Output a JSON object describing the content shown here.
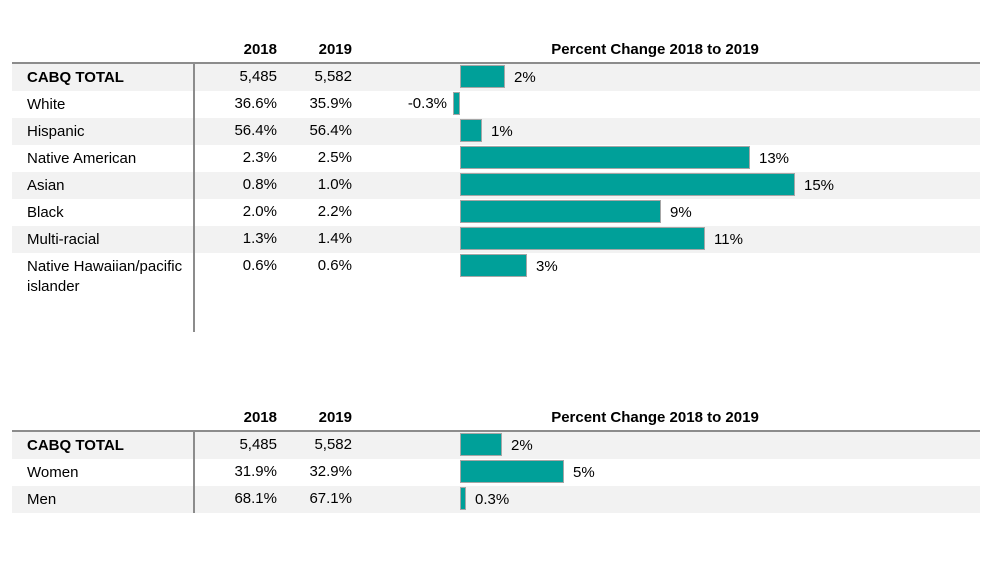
{
  "colors": {
    "bar_fill": "#00a099",
    "bar_border": "#a6a6a6",
    "stripe": "#f2f2f2",
    "rule": "#8c8c8c"
  },
  "tables": [
    {
      "name": "race-ethnicity",
      "col_headers": [
        "2018",
        "2019"
      ],
      "chart_title": "Percent Change 2018 to 2019",
      "rows": [
        {
          "label": "CABQ TOTAL",
          "emphasis": true,
          "y2018": "5,485",
          "y2019": "5,582",
          "change_col": "",
          "bar_value": 2,
          "bar_label": "2%"
        },
        {
          "label": "White",
          "y2018": "36.6%",
          "y2019": "35.9%",
          "change_col": "-0.3%",
          "bar_value": -0.3,
          "bar_label": ""
        },
        {
          "label": "Hispanic",
          "y2018": "56.4%",
          "y2019": "56.4%",
          "change_col": "",
          "bar_value": 1,
          "bar_label": "1%"
        },
        {
          "label": "Native American",
          "y2018": "2.3%",
          "y2019": "2.5%",
          "change_col": "",
          "bar_value": 13,
          "bar_label": "13%"
        },
        {
          "label": "Asian",
          "y2018": "0.8%",
          "y2019": "1.0%",
          "change_col": "",
          "bar_value": 15,
          "bar_label": "15%"
        },
        {
          "label": "Black",
          "y2018": "2.0%",
          "y2019": "2.2%",
          "change_col": "",
          "bar_value": 9,
          "bar_label": "9%"
        },
        {
          "label": "Multi-racial",
          "y2018": "1.3%",
          "y2019": "1.4%",
          "change_col": "",
          "bar_value": 11,
          "bar_label": "11%"
        },
        {
          "label": "Native Hawaiian/pacific islander",
          "tall": true,
          "y2018": "0.6%",
          "y2019": "0.6%",
          "change_col": "",
          "bar_value": 3,
          "bar_label": "3%"
        }
      ]
    },
    {
      "name": "gender",
      "col_headers": [
        "2018",
        "2019"
      ],
      "chart_title": "Percent Change 2018 to 2019",
      "rows": [
        {
          "label": "CABQ TOTAL",
          "emphasis": true,
          "y2018": "5,485",
          "y2019": "5,582",
          "change_col": "",
          "bar_value": 2,
          "bar_label": "2%"
        },
        {
          "label": "Women",
          "y2018": "31.9%",
          "y2019": "32.9%",
          "change_col": "",
          "bar_value": 5,
          "bar_label": "5%"
        },
        {
          "label": "Men",
          "y2018": "68.1%",
          "y2019": "67.1%",
          "change_col": "",
          "bar_value": 0.3,
          "bar_label": "0.3%"
        }
      ]
    }
  ],
  "chart_data": [
    {
      "type": "bar",
      "orientation": "horizontal",
      "title": "Percent Change 2018 to 2019",
      "categories": [
        "CABQ TOTAL",
        "White",
        "Hispanic",
        "Native American",
        "Asian",
        "Black",
        "Multi-racial",
        "Native Hawaiian/pacific islander"
      ],
      "values": [
        2,
        -0.3,
        1,
        13,
        15,
        9,
        11,
        3
      ],
      "value_labels": [
        "2%",
        "-0.3%",
        "1%",
        "13%",
        "15%",
        "9%",
        "11%",
        "3%"
      ],
      "unit": "percent",
      "bar_color": "#00a099",
      "table_columns": {
        "2018": [
          "5,485",
          "36.6%",
          "56.4%",
          "2.3%",
          "0.8%",
          "2.0%",
          "1.3%",
          "0.6%"
        ],
        "2019": [
          "5,582",
          "35.9%",
          "56.4%",
          "2.5%",
          "1.0%",
          "2.2%",
          "1.4%",
          "0.6%"
        ]
      },
      "legend": "none",
      "grid": false
    },
    {
      "type": "bar",
      "orientation": "horizontal",
      "title": "Percent Change 2018 to 2019",
      "categories": [
        "CABQ TOTAL",
        "Women",
        "Men"
      ],
      "values": [
        2,
        5,
        0.3
      ],
      "value_labels": [
        "2%",
        "5%",
        "0.3%"
      ],
      "unit": "percent",
      "bar_color": "#00a099",
      "table_columns": {
        "2018": [
          "5,485",
          "31.9%",
          "68.1%"
        ],
        "2019": [
          "5,582",
          "32.9%",
          "67.1%"
        ]
      },
      "legend": "none",
      "grid": false
    }
  ]
}
